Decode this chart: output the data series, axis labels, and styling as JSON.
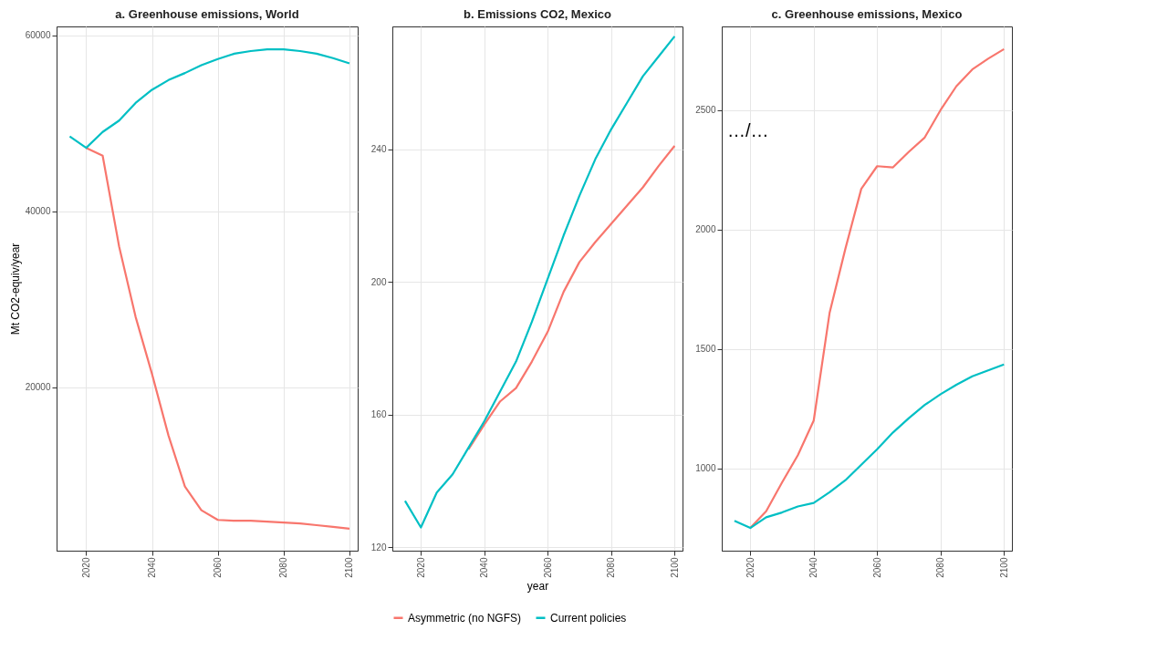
{
  "chart_data": [
    {
      "type": "line",
      "title": "a. Greenhouse emissions, World",
      "ylabel": "Mt CO2-equiv/year",
      "x": [
        2015,
        2020,
        2025,
        2030,
        2035,
        2040,
        2045,
        2050,
        2055,
        2060,
        2065,
        2070,
        2075,
        2080,
        2085,
        2090,
        2095,
        2100
      ],
      "xlim": [
        2011,
        2102.5
      ],
      "xticks": [
        2020,
        2040,
        2060,
        2080,
        2100
      ],
      "ylim": [
        1400,
        61000
      ],
      "yticks": [
        20000,
        40000,
        60000
      ],
      "grid": true,
      "legend": false,
      "series": [
        {
          "color": "#f8766d",
          "values": [
            null,
            47200,
            46300,
            36000,
            28000,
            21500,
            14500,
            8700,
            6000,
            4900,
            4800,
            4800,
            4700,
            4600,
            4500,
            4300,
            4100,
            3900
          ]
        },
        {
          "color": "#00bfc4",
          "values": [
            48500,
            47200,
            49000,
            50300,
            52300,
            53800,
            54900,
            55700,
            56600,
            57300,
            57900,
            58200,
            58400,
            58400,
            58200,
            57900,
            57400,
            56800
          ]
        }
      ]
    },
    {
      "type": "line",
      "title": "b. Emissions CO2, Mexico",
      "xlabel": "year",
      "x": [
        2015,
        2020,
        2025,
        2030,
        2035,
        2040,
        2045,
        2050,
        2055,
        2060,
        2065,
        2070,
        2075,
        2080,
        2085,
        2090,
        2095,
        2100
      ],
      "xlim": [
        2011,
        2102.5
      ],
      "xticks": [
        2020,
        2040,
        2060,
        2080,
        2100
      ],
      "ylim": [
        119,
        277
      ],
      "yticks": [
        120,
        160,
        200,
        240
      ],
      "grid": true,
      "legend": "bottom",
      "series": [
        {
          "name": "Asymmetric (no NGFS)",
          "color": "#f8766d",
          "values": [
            null,
            null,
            null,
            null,
            149.5,
            157,
            164,
            168,
            176,
            185,
            197,
            206,
            212,
            217.5,
            223,
            228.5,
            235,
            241
          ]
        },
        {
          "name": "Current policies",
          "color": "#00bfc4",
          "values": [
            134,
            126,
            136.5,
            142,
            150,
            158,
            167,
            176,
            188,
            201,
            214,
            226,
            237,
            246,
            254,
            262,
            268,
            274
          ]
        }
      ]
    },
    {
      "type": "line",
      "title": "c. Greenhouse emissions, Mexico",
      "annotations": [
        "…/…"
      ],
      "x": [
        2015,
        2020,
        2025,
        2030,
        2035,
        2040,
        2045,
        2050,
        2055,
        2060,
        2065,
        2070,
        2075,
        2080,
        2085,
        2090,
        2095,
        2100
      ],
      "xlim": [
        2011,
        2102.5
      ],
      "xticks": [
        2020,
        2040,
        2060,
        2080,
        2100
      ],
      "ylim": [
        655,
        2850
      ],
      "yticks": [
        1000,
        1500,
        2000,
        2500
      ],
      "grid": true,
      "legend": false,
      "series": [
        {
          "color": "#f8766d",
          "values": [
            null,
            750,
            820,
            940,
            1055,
            1200,
            1650,
            1920,
            2170,
            2265,
            2260,
            2325,
            2385,
            2500,
            2600,
            2670,
            2715,
            2755
          ]
        },
        {
          "color": "#00bfc4",
          "values": [
            780,
            750,
            795,
            815,
            840,
            855,
            900,
            950,
            1015,
            1080,
            1150,
            1210,
            1265,
            1310,
            1350,
            1385,
            1410,
            1435
          ]
        }
      ]
    }
  ]
}
